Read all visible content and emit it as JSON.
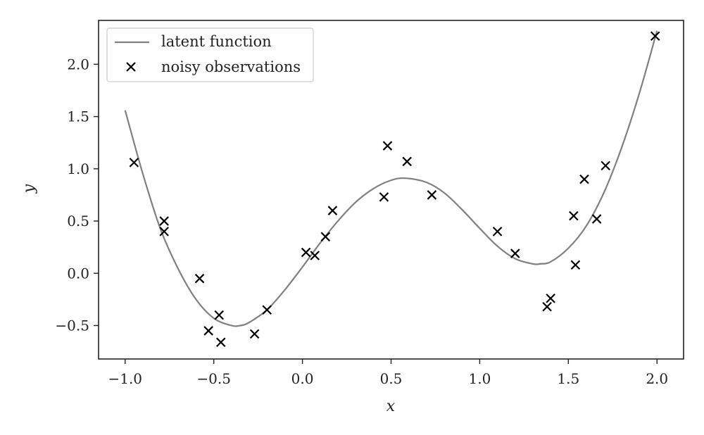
{
  "chart_data": {
    "type": "scatter",
    "xlabel": "x",
    "ylabel": "y",
    "xlim": [
      -1.15,
      2.15
    ],
    "ylim": [
      -0.82,
      2.42
    ],
    "x_ticks": [
      -1.0,
      -0.5,
      0.0,
      0.5,
      1.0,
      1.5,
      2.0
    ],
    "x_tick_labels": [
      "−1.0",
      "−0.5",
      "0.0",
      "0.5",
      "1.0",
      "1.5",
      "2.0"
    ],
    "y_ticks": [
      -0.5,
      0.0,
      0.5,
      1.0,
      1.5,
      2.0
    ],
    "y_tick_labels": [
      "−0.5",
      "0.0",
      "0.5",
      "1.0",
      "1.5",
      "2.0"
    ],
    "grid": false,
    "legend_position": "top-left",
    "series": [
      {
        "name": "latent function",
        "kind": "line",
        "color": "#808080",
        "x": [
          -1.0,
          -0.9,
          -0.8,
          -0.7,
          -0.6,
          -0.5,
          -0.4,
          -0.35,
          -0.3,
          -0.2,
          -0.1,
          0.0,
          0.1,
          0.2,
          0.3,
          0.4,
          0.5,
          0.58,
          0.7,
          0.8,
          0.9,
          1.0,
          1.1,
          1.2,
          1.3,
          1.34,
          1.4,
          1.5,
          1.6,
          1.7,
          1.8,
          1.9,
          2.0
        ],
        "y": [
          1.56,
          0.95,
          0.42,
          0.04,
          -0.25,
          -0.43,
          -0.5,
          -0.5,
          -0.47,
          -0.35,
          -0.16,
          0.06,
          0.29,
          0.5,
          0.68,
          0.81,
          0.89,
          0.91,
          0.87,
          0.77,
          0.61,
          0.43,
          0.26,
          0.14,
          0.09,
          0.09,
          0.11,
          0.24,
          0.45,
          0.77,
          1.2,
          1.72,
          2.32
        ]
      },
      {
        "name": "noisy observations",
        "kind": "scatter",
        "marker": "x",
        "color": "#000000",
        "x": [
          -0.95,
          -0.78,
          -0.78,
          -0.58,
          -0.53,
          -0.47,
          -0.46,
          -0.27,
          -0.2,
          0.02,
          0.07,
          0.13,
          0.17,
          0.46,
          0.48,
          0.59,
          0.73,
          1.1,
          1.2,
          1.38,
          1.4,
          1.53,
          1.54,
          1.59,
          1.66,
          1.71,
          1.99
        ],
        "y": [
          1.06,
          0.5,
          0.4,
          -0.05,
          -0.55,
          -0.4,
          -0.66,
          -0.58,
          -0.35,
          0.2,
          0.17,
          0.35,
          0.6,
          0.73,
          1.22,
          1.07,
          0.75,
          0.4,
          0.19,
          -0.32,
          -0.24,
          0.55,
          0.08,
          0.9,
          0.52,
          1.03,
          2.27
        ]
      }
    ]
  }
}
